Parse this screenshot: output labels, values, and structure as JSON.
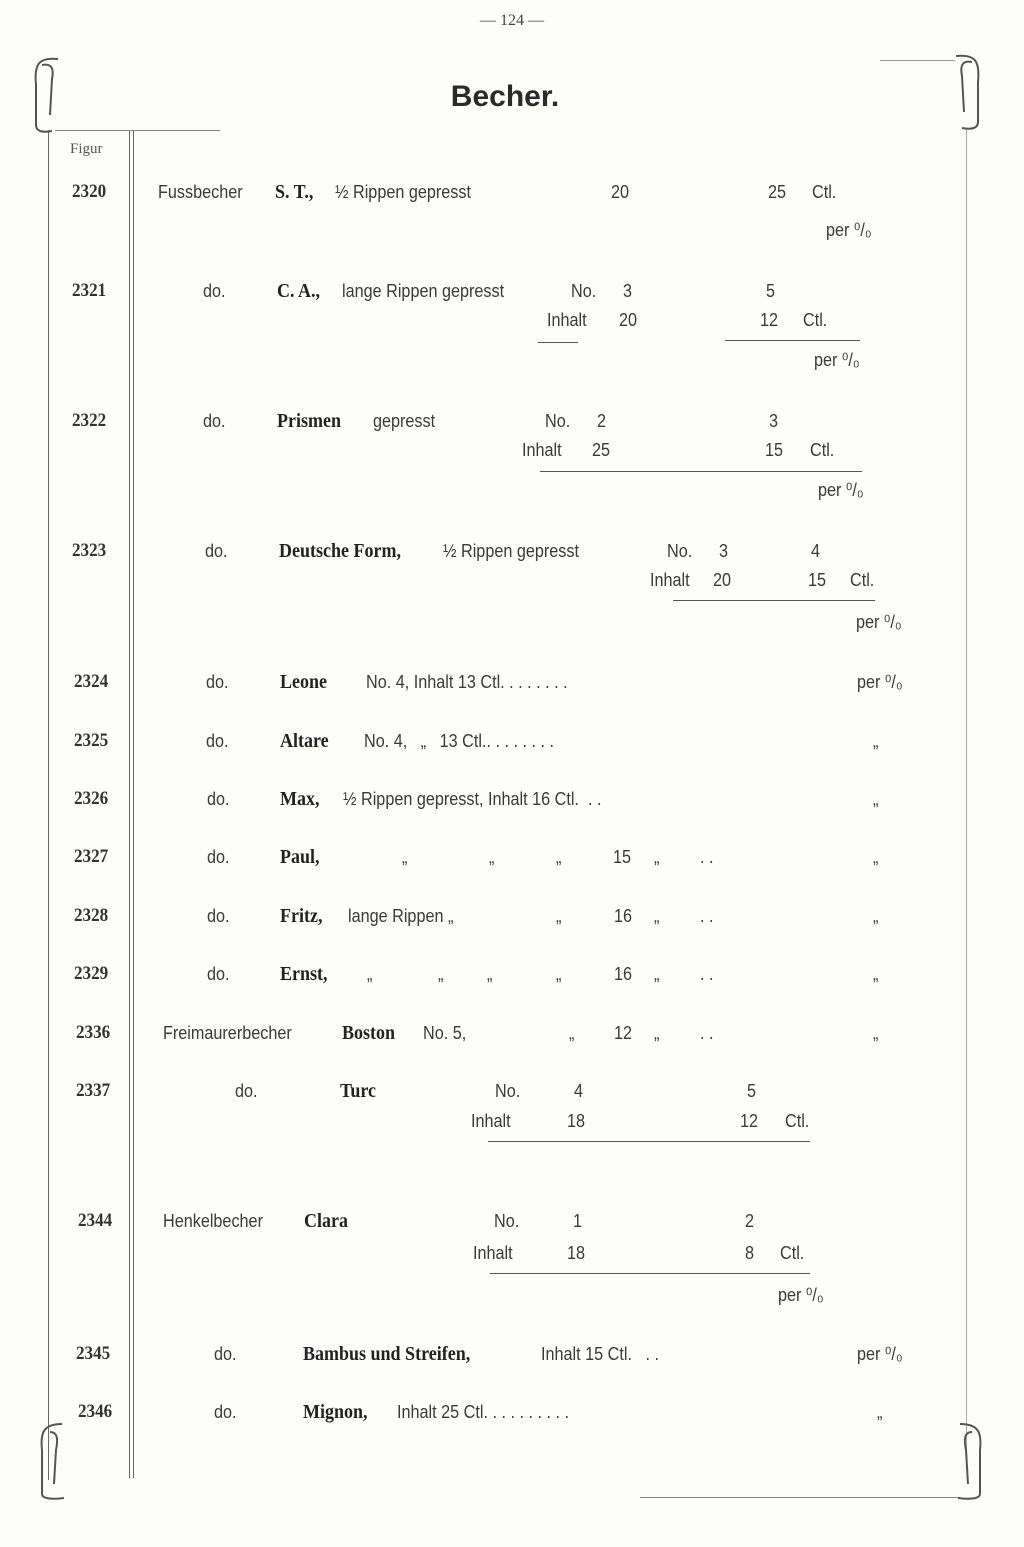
{
  "header": {
    "page_number": "— 124 —",
    "title": "Becher.",
    "column_label": "Figur"
  },
  "rows": [
    {
      "figure": "2320",
      "cells": [
        "Fussbecher",
        "S. T.,",
        "½ Rippen gepresst",
        "20",
        "25",
        "Ctl.",
        "per ⁰/₀"
      ]
    },
    {
      "figure": "2321",
      "cells": [
        "do.",
        "C. A.,",
        "lange Rippen gepresst",
        "No.",
        "3",
        "5",
        "Inhalt",
        "20",
        "12",
        "Ctl.",
        "per ⁰/₀"
      ]
    },
    {
      "figure": "2322",
      "cells": [
        "do.",
        "Prismen",
        "gepresst",
        "No.",
        "2",
        "3",
        "Inhalt",
        "25",
        "15",
        "Ctl.",
        "per ⁰/₀"
      ]
    },
    {
      "figure": "2323",
      "cells": [
        "do.",
        "Deutsche Form,",
        "½ Rippen gepresst",
        "No.",
        "3",
        "4",
        "Inhalt",
        "20",
        "15",
        "Ctl.",
        "per ⁰/₀"
      ]
    },
    {
      "figure": "2324",
      "cells": [
        "do.",
        "Leone",
        "No. 4, Inhalt 13 Ctl. . . . . . . .",
        "per ⁰/₀"
      ]
    },
    {
      "figure": "2325",
      "cells": [
        "do.",
        "Altare",
        "No. 4,   „   13 Ctl.. . . . . . . .",
        "„"
      ]
    },
    {
      "figure": "2326",
      "cells": [
        "do.",
        "Max,",
        "½ Rippen gepresst, Inhalt 16 Ctl.  . .",
        "„"
      ]
    },
    {
      "figure": "2327",
      "cells": [
        "do.",
        "Paul,",
        "„",
        "„",
        "„",
        "15",
        "„",
        ". .",
        "„"
      ]
    },
    {
      "figure": "2328",
      "cells": [
        "do.",
        "Fritz,",
        "lange Rippen „",
        "„",
        "16",
        "„",
        ". .",
        "„"
      ]
    },
    {
      "figure": "2329",
      "cells": [
        "do.",
        "Ernst,",
        "„",
        "„",
        "„",
        "„",
        "16",
        "„",
        ". .",
        "„"
      ]
    },
    {
      "figure": "2336",
      "cells": [
        "Freimaurerbecher",
        "Boston",
        "No. 5,",
        "„",
        "12",
        "„",
        ". .",
        "„"
      ]
    },
    {
      "figure": "2337",
      "cells": [
        "do.",
        "Turc",
        "No.",
        "4",
        "5",
        "Inhalt",
        "18",
        "12",
        "Ctl."
      ]
    },
    {
      "figure": "2344",
      "cells": [
        "Henkelbecher",
        "Clara",
        "No.",
        "1",
        "2",
        "Inhalt",
        "18",
        "8",
        "Ctl.",
        "per ⁰/₀"
      ]
    },
    {
      "figure": "2345",
      "cells": [
        "do.",
        "Bambus und Streifen,",
        "Inhalt 15 Ctl.   . .",
        "per ⁰/₀"
      ]
    },
    {
      "figure": "2346",
      "cells": [
        "do.",
        "Mignon,",
        "Inhalt 25 Ctl. . . . . . . . . .",
        "„"
      ]
    }
  ],
  "colors": {
    "ink": "#3a3a3a",
    "paper": "#fdfdfb"
  }
}
